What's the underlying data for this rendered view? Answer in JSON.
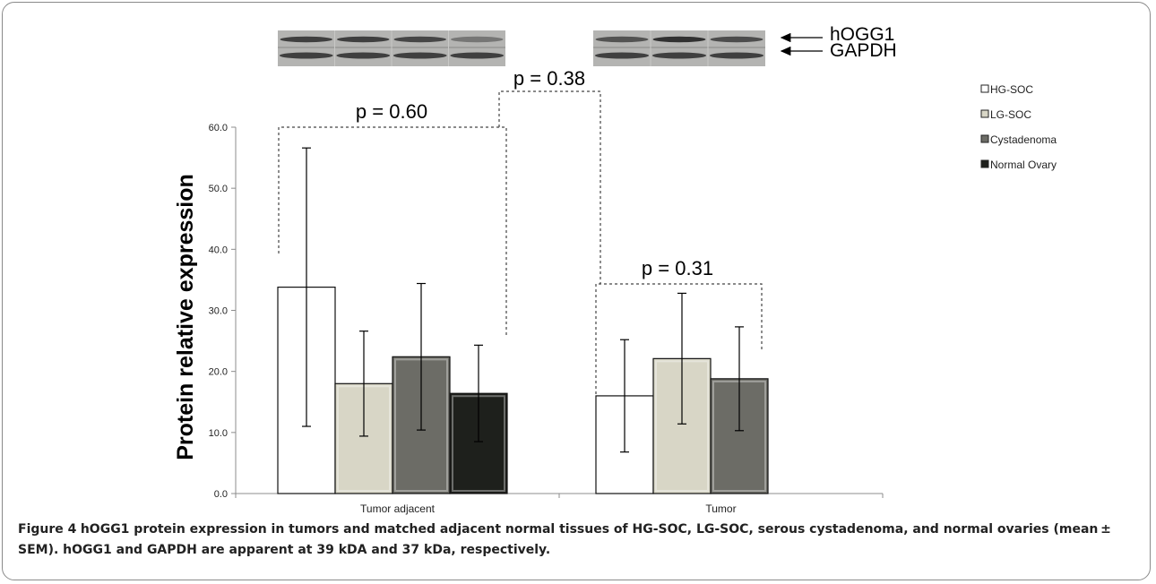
{
  "figure_label": "Figure 4",
  "caption": "hOGG1 protein expression in tumors and matched adjacent normal tissues of HG-SOC, LG-SOC, serous cystadenoma, and normal ovaries (mean ± SEM). hOGG1 and GAPDH are apparent at 39 kDA and 37 kDa, respectively.",
  "blot_labels": [
    "hOGG1",
    "GAPDH"
  ],
  "colors": {
    "HG-SOC": "#ffffff",
    "LG-SOC": "#d8d6c6",
    "Cystadenoma": "#6c6c66",
    "Normal Ovary": "#1e201c"
  },
  "chart_data": {
    "type": "bar",
    "title": "",
    "xlabel": "",
    "ylabel": "Protein relative expression",
    "ylim": [
      0,
      60
    ],
    "yticks": [
      "0.0",
      "10.0",
      "20.0",
      "30.0",
      "40.0",
      "50.0",
      "60.0"
    ],
    "categories": [
      "Tumor adjacent",
      "Tumor"
    ],
    "legend_position": "right",
    "series": [
      {
        "name": "HG-SOC",
        "values": [
          33.8,
          16.0
        ],
        "errors": [
          22.8,
          9.2
        ]
      },
      {
        "name": "LG-SOC",
        "values": [
          18.0,
          22.1
        ],
        "errors": [
          8.6,
          10.7
        ]
      },
      {
        "name": "Cystadenoma",
        "values": [
          22.4,
          18.8
        ],
        "errors": [
          12.0,
          8.5
        ]
      },
      {
        "name": "Normal Ovary",
        "values": [
          16.4,
          null
        ],
        "errors": [
          7.9,
          null
        ]
      }
    ],
    "annotations": [
      "p = 0.60",
      "p = 0.31",
      "p = 0.38"
    ]
  }
}
